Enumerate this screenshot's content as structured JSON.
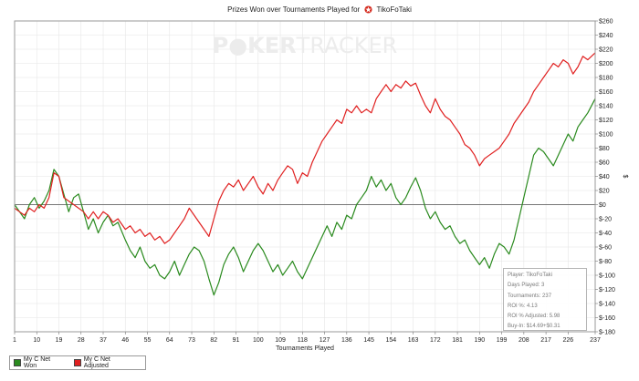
{
  "title": {
    "prefix": "Prizes Won over Tournaments Played for",
    "player": "TikoFoTaki"
  },
  "watermark": {
    "part1": "P",
    "part2": "KER",
    "part3": "TRACKER"
  },
  "colors": {
    "won": "#2a8a1e",
    "adjusted": "#e02020",
    "zero": "#777777",
    "grid": "#e6e6e6"
  },
  "chart_data": {
    "type": "line",
    "xlabel": "Tournaments Played",
    "ylabel": "$",
    "xlim": [
      1,
      237
    ],
    "ylim": [
      -180,
      260
    ],
    "x_ticks": [
      1,
      10,
      19,
      28,
      37,
      46,
      55,
      64,
      73,
      82,
      91,
      100,
      109,
      118,
      127,
      136,
      145,
      154,
      163,
      172,
      181,
      190,
      199,
      208,
      217,
      226,
      237
    ],
    "y_ticks": [
      260,
      240,
      220,
      200,
      180,
      160,
      140,
      120,
      100,
      80,
      60,
      40,
      20,
      0,
      -20,
      -40,
      -60,
      -80,
      -100,
      -120,
      -140,
      -160,
      -180
    ],
    "grid": true,
    "legend_position": "bottom-left",
    "series": [
      {
        "name": "My C Net Won",
        "color": "#2a8a1e",
        "points": [
          [
            1,
            0
          ],
          [
            3,
            -10
          ],
          [
            5,
            -20
          ],
          [
            7,
            0
          ],
          [
            9,
            10
          ],
          [
            11,
            -5
          ],
          [
            13,
            5
          ],
          [
            15,
            20
          ],
          [
            17,
            50
          ],
          [
            19,
            40
          ],
          [
            21,
            15
          ],
          [
            23,
            -10
          ],
          [
            25,
            10
          ],
          [
            27,
            15
          ],
          [
            29,
            -10
          ],
          [
            31,
            -35
          ],
          [
            33,
            -20
          ],
          [
            35,
            -40
          ],
          [
            37,
            -25
          ],
          [
            39,
            -15
          ],
          [
            41,
            -30
          ],
          [
            43,
            -25
          ],
          [
            46,
            -50
          ],
          [
            48,
            -65
          ],
          [
            50,
            -75
          ],
          [
            52,
            -60
          ],
          [
            54,
            -80
          ],
          [
            56,
            -90
          ],
          [
            58,
            -85
          ],
          [
            60,
            -100
          ],
          [
            62,
            -105
          ],
          [
            64,
            -95
          ],
          [
            66,
            -80
          ],
          [
            68,
            -100
          ],
          [
            70,
            -85
          ],
          [
            72,
            -70
          ],
          [
            74,
            -60
          ],
          [
            76,
            -65
          ],
          [
            78,
            -80
          ],
          [
            80,
            -105
          ],
          [
            82,
            -128
          ],
          [
            84,
            -110
          ],
          [
            86,
            -85
          ],
          [
            88,
            -70
          ],
          [
            90,
            -60
          ],
          [
            92,
            -75
          ],
          [
            94,
            -95
          ],
          [
            96,
            -80
          ],
          [
            98,
            -65
          ],
          [
            100,
            -55
          ],
          [
            102,
            -65
          ],
          [
            104,
            -80
          ],
          [
            106,
            -95
          ],
          [
            108,
            -85
          ],
          [
            110,
            -100
          ],
          [
            112,
            -90
          ],
          [
            114,
            -80
          ],
          [
            116,
            -95
          ],
          [
            118,
            -105
          ],
          [
            120,
            -90
          ],
          [
            122,
            -75
          ],
          [
            124,
            -60
          ],
          [
            126,
            -45
          ],
          [
            128,
            -30
          ],
          [
            130,
            -45
          ],
          [
            132,
            -25
          ],
          [
            134,
            -35
          ],
          [
            136,
            -15
          ],
          [
            138,
            -20
          ],
          [
            140,
            0
          ],
          [
            142,
            10
          ],
          [
            144,
            20
          ],
          [
            146,
            40
          ],
          [
            148,
            25
          ],
          [
            150,
            35
          ],
          [
            152,
            20
          ],
          [
            154,
            30
          ],
          [
            156,
            10
          ],
          [
            158,
            0
          ],
          [
            160,
            10
          ],
          [
            162,
            25
          ],
          [
            164,
            38
          ],
          [
            166,
            20
          ],
          [
            168,
            -5
          ],
          [
            170,
            -20
          ],
          [
            172,
            -10
          ],
          [
            174,
            -25
          ],
          [
            176,
            -35
          ],
          [
            178,
            -30
          ],
          [
            180,
            -45
          ],
          [
            182,
            -55
          ],
          [
            184,
            -50
          ],
          [
            186,
            -65
          ],
          [
            188,
            -75
          ],
          [
            190,
            -85
          ],
          [
            192,
            -75
          ],
          [
            194,
            -90
          ],
          [
            196,
            -70
          ],
          [
            198,
            -55
          ],
          [
            200,
            -60
          ],
          [
            202,
            -70
          ],
          [
            204,
            -50
          ],
          [
            206,
            -20
          ],
          [
            208,
            10
          ],
          [
            210,
            40
          ],
          [
            212,
            70
          ],
          [
            214,
            80
          ],
          [
            216,
            75
          ],
          [
            218,
            65
          ],
          [
            220,
            55
          ],
          [
            222,
            70
          ],
          [
            224,
            85
          ],
          [
            226,
            100
          ],
          [
            228,
            90
          ],
          [
            230,
            110
          ],
          [
            232,
            120
          ],
          [
            234,
            130
          ],
          [
            237,
            150
          ]
        ]
      },
      {
        "name": "My C Net Adjusted",
        "color": "#e02020",
        "points": [
          [
            1,
            -5
          ],
          [
            3,
            -10
          ],
          [
            5,
            -15
          ],
          [
            7,
            -5
          ],
          [
            9,
            -10
          ],
          [
            11,
            0
          ],
          [
            13,
            -5
          ],
          [
            15,
            10
          ],
          [
            17,
            45
          ],
          [
            19,
            40
          ],
          [
            21,
            10
          ],
          [
            23,
            5
          ],
          [
            25,
            0
          ],
          [
            27,
            -5
          ],
          [
            29,
            -10
          ],
          [
            31,
            -20
          ],
          [
            33,
            -10
          ],
          [
            35,
            -20
          ],
          [
            37,
            -10
          ],
          [
            39,
            -15
          ],
          [
            41,
            -25
          ],
          [
            43,
            -20
          ],
          [
            46,
            -35
          ],
          [
            48,
            -30
          ],
          [
            50,
            -40
          ],
          [
            52,
            -35
          ],
          [
            54,
            -45
          ],
          [
            56,
            -40
          ],
          [
            58,
            -50
          ],
          [
            60,
            -45
          ],
          [
            62,
            -55
          ],
          [
            64,
            -50
          ],
          [
            66,
            -40
          ],
          [
            68,
            -30
          ],
          [
            70,
            -20
          ],
          [
            72,
            -5
          ],
          [
            74,
            -15
          ],
          [
            76,
            -25
          ],
          [
            78,
            -35
          ],
          [
            80,
            -45
          ],
          [
            82,
            -20
          ],
          [
            84,
            5
          ],
          [
            86,
            20
          ],
          [
            88,
            30
          ],
          [
            90,
            25
          ],
          [
            92,
            35
          ],
          [
            94,
            20
          ],
          [
            96,
            30
          ],
          [
            98,
            40
          ],
          [
            100,
            25
          ],
          [
            102,
            15
          ],
          [
            104,
            30
          ],
          [
            106,
            20
          ],
          [
            108,
            35
          ],
          [
            110,
            45
          ],
          [
            112,
            55
          ],
          [
            114,
            50
          ],
          [
            116,
            30
          ],
          [
            118,
            45
          ],
          [
            120,
            40
          ],
          [
            122,
            60
          ],
          [
            124,
            75
          ],
          [
            126,
            90
          ],
          [
            128,
            100
          ],
          [
            130,
            110
          ],
          [
            132,
            120
          ],
          [
            134,
            115
          ],
          [
            136,
            135
          ],
          [
            138,
            130
          ],
          [
            140,
            140
          ],
          [
            142,
            130
          ],
          [
            144,
            135
          ],
          [
            146,
            130
          ],
          [
            148,
            150
          ],
          [
            150,
            160
          ],
          [
            152,
            170
          ],
          [
            154,
            160
          ],
          [
            156,
            170
          ],
          [
            158,
            165
          ],
          [
            160,
            175
          ],
          [
            162,
            168
          ],
          [
            164,
            172
          ],
          [
            166,
            155
          ],
          [
            168,
            140
          ],
          [
            170,
            130
          ],
          [
            172,
            150
          ],
          [
            174,
            135
          ],
          [
            176,
            125
          ],
          [
            178,
            120
          ],
          [
            180,
            110
          ],
          [
            182,
            100
          ],
          [
            184,
            85
          ],
          [
            186,
            80
          ],
          [
            188,
            70
          ],
          [
            190,
            55
          ],
          [
            192,
            65
          ],
          [
            194,
            70
          ],
          [
            196,
            75
          ],
          [
            198,
            80
          ],
          [
            200,
            90
          ],
          [
            202,
            100
          ],
          [
            204,
            115
          ],
          [
            206,
            125
          ],
          [
            208,
            135
          ],
          [
            210,
            145
          ],
          [
            212,
            160
          ],
          [
            214,
            170
          ],
          [
            216,
            180
          ],
          [
            218,
            190
          ],
          [
            220,
            200
          ],
          [
            222,
            195
          ],
          [
            224,
            205
          ],
          [
            226,
            200
          ],
          [
            228,
            185
          ],
          [
            230,
            195
          ],
          [
            232,
            210
          ],
          [
            234,
            205
          ],
          [
            237,
            215
          ]
        ]
      }
    ]
  },
  "legend": {
    "won_label": "My C Net Won",
    "adj_label": "My C Net Adjusted"
  },
  "info": {
    "player": "Player: TikoFoTaki",
    "days": "Days Played: 3",
    "tournaments": "Tournaments: 237",
    "roi": "ROI %: 4.13",
    "roi_adj": "ROI % Adjusted: 5.98",
    "buyin": "Buy-In: $14.69+$0.31"
  }
}
